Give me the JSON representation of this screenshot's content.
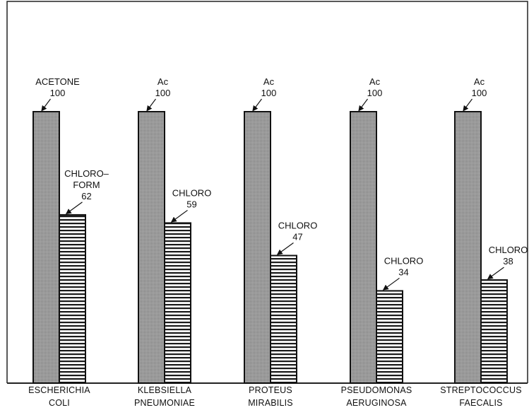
{
  "chart_data": {
    "type": "bar",
    "categories": [
      [
        "ESCHERICHIA",
        "COLI"
      ],
      [
        "KLEBSIELLA",
        "PNEUMONIAE"
      ],
      [
        "PROTEUS",
        "MIRABILIS"
      ],
      [
        "PSEUDOMONAS",
        "AERUGINOSA"
      ],
      [
        "STREPTOCOCCUS",
        "FAECALIS"
      ]
    ],
    "series": [
      {
        "values": [
          100,
          100,
          100,
          100,
          100
        ],
        "labels": [
          [
            "ACETONE",
            "100"
          ],
          [
            "Ac",
            "100"
          ],
          [
            "Ac",
            "100"
          ],
          [
            "Ac",
            "100"
          ],
          [
            "Ac",
            "100"
          ]
        ],
        "fill": "#9a9a9a"
      },
      {
        "values": [
          62,
          59,
          47,
          34,
          38
        ],
        "labels": [
          [
            "CHLORO–",
            "FORM",
            "62"
          ],
          [
            "CHLORO",
            "59"
          ],
          [
            "CHLORO",
            "47"
          ],
          [
            "CHLORO",
            "34"
          ],
          [
            "CHLORO",
            "38"
          ]
        ],
        "fill": "striped"
      }
    ],
    "ylim": [
      0,
      100
    ],
    "grid": false,
    "legend": "none"
  }
}
